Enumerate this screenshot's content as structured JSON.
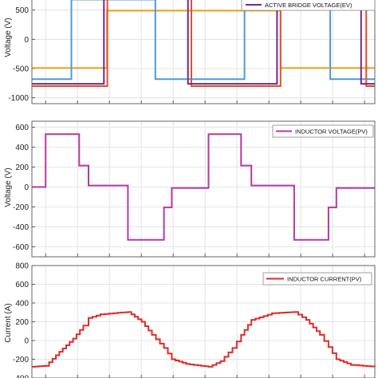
{
  "chart_data": [
    {
      "type": "line",
      "ylabel": "Voltage (V)",
      "ylim": [
        -1100,
        700
      ],
      "yticks": [
        500,
        0,
        -500,
        -1000
      ],
      "xlim": [
        0,
        1
      ],
      "grid": true,
      "legend": {
        "position": "top-right",
        "entries": [
          "ACTIVE BRIDGE VOLTAGE(EV)"
        ]
      },
      "series": [
        {
          "name": "",
          "color": "#e8a31c",
          "x": [
            0,
            0.219,
            0.219,
            0.725,
            0.725,
            1
          ],
          "y": [
            -490,
            -490,
            490,
            490,
            -490,
            -490
          ]
        },
        {
          "name": "",
          "color": "#4e9bd2",
          "x": [
            0,
            0.115,
            0.115,
            0.36,
            0.36,
            0.62,
            0.62,
            0.87,
            0.87,
            1
          ],
          "y": [
            -680,
            -680,
            680,
            680,
            -680,
            -680,
            680,
            680,
            -680,
            -680
          ]
        },
        {
          "name": "",
          "color": "#e0502a",
          "x": [
            0,
            0.22,
            0.22,
            0.465,
            0.465,
            0.725,
            0.725,
            0.975,
            0.975,
            1
          ],
          "y": [
            -800,
            -800,
            800,
            800,
            -800,
            -800,
            800,
            800,
            -800,
            -800
          ]
        },
        {
          "name": "ACTIVE BRIDGE VOLTAGE(EV)",
          "color": "#6a2c8e",
          "x": [
            0,
            0.21,
            0.21,
            0.455,
            0.455,
            0.715,
            0.715,
            0.96,
            0.96,
            1
          ],
          "y": [
            -760,
            -760,
            760,
            760,
            -760,
            -760,
            760,
            760,
            -760,
            -760
          ]
        }
      ]
    },
    {
      "type": "line",
      "ylabel": "Voltage (V)",
      "ylim": [
        -700,
        660
      ],
      "yticks": [
        600,
        400,
        200,
        0,
        -200,
        -400,
        -600
      ],
      "xlim": [
        0,
        1
      ],
      "grid": true,
      "legend": {
        "position": "top-right",
        "entries": [
          "INDUCTOR VOLTAGE(PV)"
        ]
      },
      "series": [
        {
          "name": "INDUCTOR VOLTAGE(PV)",
          "color": "#b23aa5",
          "x": [
            0,
            0.04,
            0.04,
            0.138,
            0.138,
            0.165,
            0.165,
            0.28,
            0.28,
            0.385,
            0.385,
            0.408,
            0.408,
            0.515,
            0.515,
            0.61,
            0.61,
            0.64,
            0.64,
            0.765,
            0.765,
            0.865,
            0.865,
            0.888,
            0.888,
            1
          ],
          "y": [
            0,
            0,
            530,
            530,
            215,
            215,
            15,
            15,
            -530,
            -530,
            -205,
            -205,
            -10,
            -10,
            530,
            530,
            215,
            215,
            15,
            15,
            -530,
            -530,
            -205,
            -205,
            -10,
            -10
          ]
        }
      ]
    },
    {
      "type": "line",
      "ylabel": "Current (A)",
      "ylim": [
        -400,
        800
      ],
      "yticks": [
        800,
        600,
        400,
        200,
        0,
        -200,
        -400
      ],
      "xlim": [
        0,
        1
      ],
      "grid": true,
      "legend": {
        "position": "top-right",
        "entries": [
          "INDUCTOR CURRENT(PV)"
        ]
      },
      "series": [
        {
          "name": "INDUCTOR CURRENT(PV)",
          "color": "#e02a2a",
          "stepped": true,
          "x": [
            0,
            0.04,
            0.08,
            0.12,
            0.15,
            0.165,
            0.2,
            0.25,
            0.28,
            0.32,
            0.35,
            0.385,
            0.408,
            0.45,
            0.515,
            0.55,
            0.585,
            0.61,
            0.64,
            0.7,
            0.765,
            0.8,
            0.84,
            0.865,
            0.888,
            0.93,
            1
          ],
          "y": [
            -280,
            -270,
            -120,
            20,
            160,
            240,
            280,
            295,
            305,
            200,
            60,
            -80,
            -200,
            -250,
            -280,
            -220,
            -80,
            60,
            220,
            290,
            305,
            220,
            60,
            -70,
            -200,
            -260,
            -280
          ]
        }
      ]
    }
  ]
}
